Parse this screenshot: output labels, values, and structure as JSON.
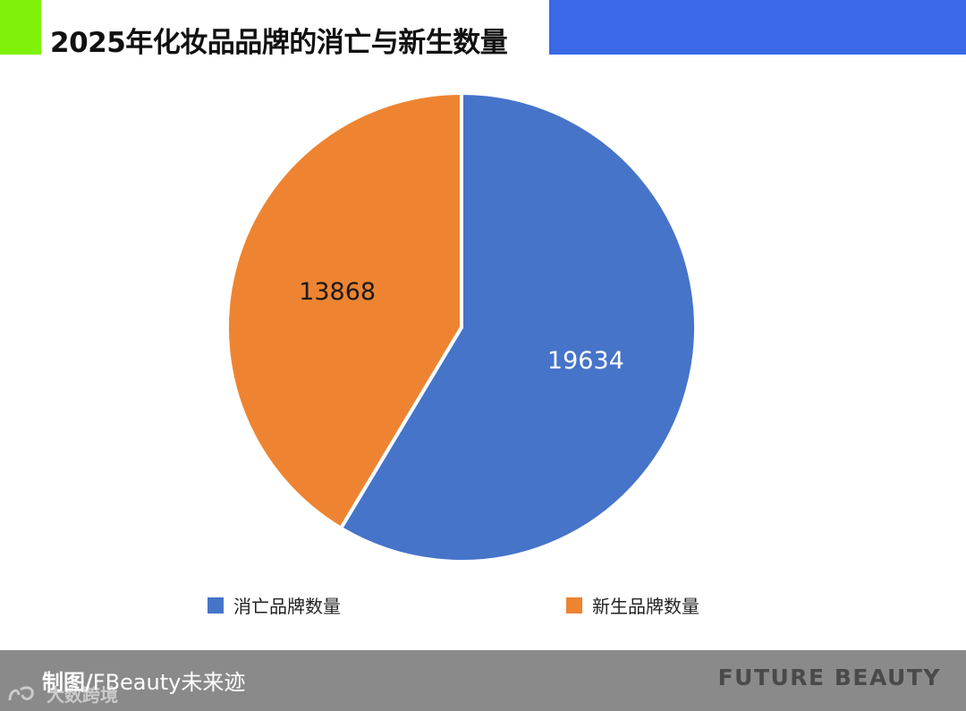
{
  "header": {
    "title": "2025年化妆品品牌的消亡与新生数量",
    "accent_left_color": "#7ff20a",
    "accent_right_color": "#3a68e6"
  },
  "chart_data": {
    "type": "pie",
    "title": "2025年化妆品品牌的消亡与新生数量",
    "categories": [
      "消亡品牌数量",
      "新生品牌数量"
    ],
    "values": [
      19634,
      13868
    ],
    "colors": [
      "#4674c9",
      "#ee8431"
    ],
    "label_colors": [
      "#ffffff",
      "#1a1a1a"
    ],
    "start_angle_deg": 0,
    "direction": "clockwise",
    "legend_position": "bottom"
  },
  "footer": {
    "credit_prefix": "制图/",
    "credit_name": "FBeauty未来迹",
    "brand": "FUTURE BEAUTY",
    "watermark_text": "大数跨境"
  }
}
